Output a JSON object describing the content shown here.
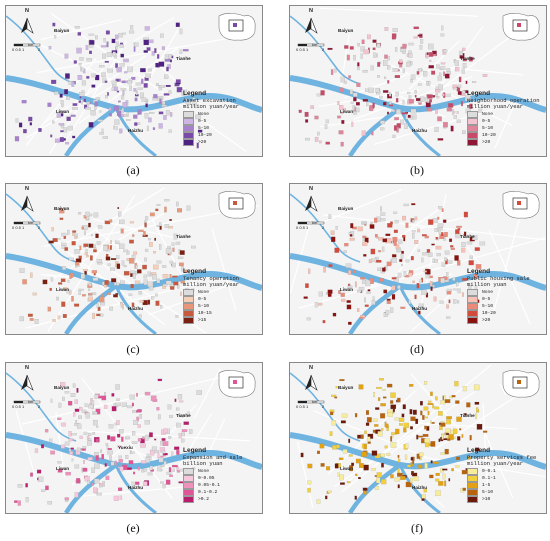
{
  "panels": [
    {
      "id": "a",
      "caption": "(a)",
      "legend": {
        "title": "Legend",
        "subtitle": "Asset excavation",
        "unit": "million yuan/year",
        "items": [
          "None",
          "0-5",
          "5-10",
          "10-20",
          ">20"
        ],
        "colors": [
          "#dcdcdc",
          "#cdb6e4",
          "#a781cc",
          "#7a4aa8",
          "#4f2183"
        ]
      },
      "places": {
        "baiyun": "Baiyun",
        "tianhe": "Tianhe",
        "liwan": "Liwan",
        "haizhu": "Haizhu"
      }
    },
    {
      "id": "b",
      "caption": "(b)",
      "legend": {
        "title": "Legend",
        "subtitle": "Neighborhood operation",
        "unit": "million yuan/year",
        "items": [
          "None",
          "0-5",
          "5-10",
          "10-20",
          ">20"
        ],
        "colors": [
          "#dcdcdc",
          "#f3c4cf",
          "#e08499",
          "#c74a68",
          "#8f1735"
        ]
      },
      "places": {
        "baiyun": "Baiyun",
        "tianhe": "Tianhe",
        "liwan": "Liwan",
        "haizhu": "Haizhu"
      }
    },
    {
      "id": "c",
      "caption": "(c)",
      "legend": {
        "title": "Legend",
        "subtitle": "Tenancy operation",
        "unit": "million yuan/year",
        "items": [
          "None",
          "0-5",
          "5-10",
          "10-15",
          ">15"
        ],
        "colors": [
          "#dcdcdc",
          "#f6cdb5",
          "#e8977a",
          "#c75a3e",
          "#7a1f12"
        ]
      },
      "places": {
        "baiyun": "Baiyun",
        "tianhe": "Tianhe",
        "liwan": "Liwan",
        "haizhu": "Haizhu"
      }
    },
    {
      "id": "d",
      "caption": "(d)",
      "legend": {
        "title": "Legend",
        "subtitle": "Public housing sale",
        "unit": "million yuan",
        "items": [
          "None",
          "0-5",
          "5-10",
          "10-20",
          ">20"
        ],
        "colors": [
          "#dcdcdc",
          "#f7c2b5",
          "#ec8a7a",
          "#d24b3d",
          "#8a130f"
        ]
      },
      "places": {
        "baiyun": "Baiyun",
        "tianhe": "Tianhe",
        "liwan": "Liwan",
        "haizhu": "Haizhu"
      }
    },
    {
      "id": "e",
      "caption": "(e)",
      "legend": {
        "title": "Legend",
        "subtitle": "Expansion and sale",
        "unit": "billion yuan",
        "items": [
          "None",
          "0-0.05",
          "0.05-0.1",
          "0.1-0.2",
          ">0.2"
        ],
        "colors": [
          "#dcdcdc",
          "#f6c7dc",
          "#ef93bd",
          "#e05596",
          "#b81d6c"
        ]
      },
      "places": {
        "baiyun": "Baiyun",
        "tianhe": "Tianhe",
        "liwan": "Liwan",
        "haizhu": "Haizhu",
        "yuexiu": "Yuexiu"
      }
    },
    {
      "id": "f",
      "caption": "(f)",
      "legend": {
        "title": "Legend",
        "subtitle": "Property services fee",
        "unit": "million yuan/year",
        "items": [
          "0-0.1",
          "0.1-1",
          "1-5",
          "5-10",
          ">10"
        ],
        "colors": [
          "#f7ec9c",
          "#f2cf3d",
          "#e3a114",
          "#b8640f",
          "#6b1a0c"
        ]
      },
      "places": {
        "baiyun": "Baiyun",
        "tianhe": "Tianhe",
        "liwan": "Liwan",
        "haizhu": "Haizhu"
      }
    }
  ],
  "map_common": {
    "north_label": "N",
    "scale_ticks": "0 0.5 1",
    "scale_end": "2",
    "scale_unit": "km",
    "river_color": "#6fb3e0",
    "road_color": "#ffffff",
    "background_color": "#f4f4f4"
  }
}
